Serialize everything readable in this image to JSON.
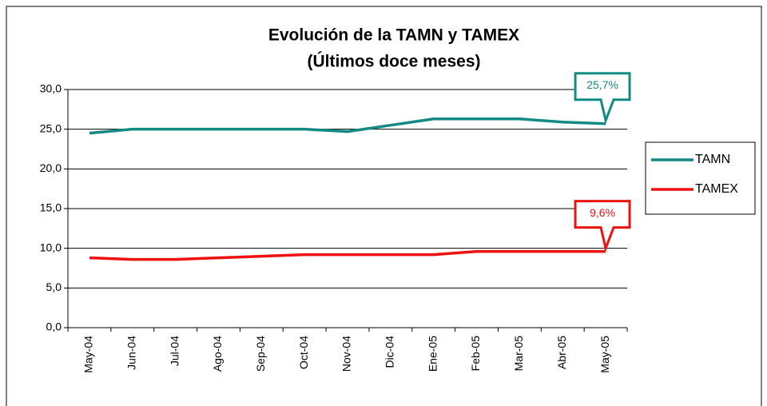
{
  "chart_data": {
    "type": "line",
    "title": "Evolución de la TAMN y TAMEX",
    "subtitle": "(Últimos doce meses)",
    "categories": [
      "May-04",
      "Jun-04",
      "Jul-04",
      "Ago-04",
      "Sep-04",
      "Oct-04",
      "Nov-04",
      "Dic-04",
      "Ene-05",
      "Feb-05",
      "Mar-05",
      "Abr-05",
      "May-05"
    ],
    "series": [
      {
        "name": "TAMN",
        "color": "#138a82",
        "values": [
          24.5,
          25.0,
          25.0,
          25.0,
          25.0,
          25.0,
          24.7,
          25.5,
          26.3,
          26.3,
          26.3,
          25.9,
          25.7
        ],
        "value_labels": [
          null,
          null,
          null,
          null,
          null,
          null,
          null,
          null,
          null,
          null,
          null,
          null,
          "25,7%"
        ]
      },
      {
        "name": "TAMEX",
        "color": "#ee1111",
        "values": [
          8.8,
          8.6,
          8.6,
          8.8,
          9.0,
          9.2,
          9.2,
          9.2,
          9.2,
          9.6,
          9.6,
          9.6,
          9.6
        ],
        "value_labels": [
          null,
          null,
          null,
          null,
          null,
          null,
          null,
          null,
          null,
          null,
          null,
          null,
          "9,6%"
        ]
      }
    ],
    "ylim": [
      0,
      30
    ],
    "yticks": [
      {
        "value": 0,
        "label": "0,0"
      },
      {
        "value": 5,
        "label": "5,0"
      },
      {
        "value": 10,
        "label": "10,0"
      },
      {
        "value": 15,
        "label": "15,0"
      },
      {
        "value": 20,
        "label": "20,0"
      },
      {
        "value": 25,
        "label": "25,0"
      },
      {
        "value": 30,
        "label": "30,0"
      }
    ],
    "grid": true,
    "legend": "right"
  }
}
